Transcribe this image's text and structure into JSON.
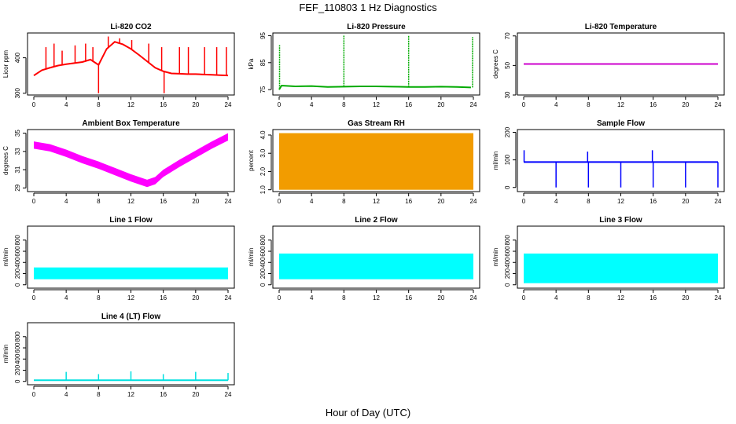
{
  "figure": {
    "title": "FEF_110803  1 Hz Diagnostics",
    "xlabel": "Hour of Day (UTC)"
  },
  "chart_data": [
    {
      "id": "co2",
      "type": "line",
      "title": "Li-820 CO2",
      "ylabel": "Licor ppm",
      "yticks": [
        300,
        400
      ],
      "ylim": [
        295,
        470
      ],
      "xlim": [
        0,
        24
      ],
      "xticks": [
        0,
        4,
        8,
        12,
        16,
        20,
        24
      ],
      "color": "#ff0000",
      "series": [
        {
          "x": [
            0,
            1,
            2,
            3,
            4,
            5,
            6,
            7,
            8,
            9,
            10,
            11,
            12,
            13,
            14,
            15,
            16,
            17,
            18,
            19,
            20,
            21,
            22,
            23,
            24
          ],
          "y": [
            350,
            365,
            372,
            378,
            382,
            385,
            388,
            395,
            380,
            425,
            445,
            438,
            425,
            408,
            390,
            372,
            362,
            356,
            355,
            354,
            354,
            353,
            352,
            351,
            350
          ]
        }
      ],
      "spikes": [
        [
          1.5,
          430
        ],
        [
          2.5,
          440
        ],
        [
          3.5,
          420
        ],
        [
          5.1,
          435
        ],
        [
          6.4,
          440
        ],
        [
          7.3,
          430
        ],
        [
          8,
          300
        ],
        [
          9.2,
          460
        ],
        [
          10.6,
          455
        ],
        [
          12.1,
          450
        ],
        [
          14.2,
          440
        ],
        [
          15.8,
          430
        ],
        [
          16.1,
          300
        ],
        [
          18,
          430
        ],
        [
          19.1,
          430
        ],
        [
          21.1,
          430
        ],
        [
          22.6,
          430
        ],
        [
          23.8,
          430
        ]
      ]
    },
    {
      "id": "pressure",
      "type": "line",
      "title": "Li-820 Pressure",
      "ylabel": "kPa",
      "yticks": [
        75,
        85,
        95
      ],
      "ylim": [
        73,
        96
      ],
      "xlim": [
        0,
        24
      ],
      "xticks": [
        0,
        4,
        8,
        12,
        16,
        20,
        24
      ],
      "color": "#00aa00",
      "series": [
        {
          "x": [
            0,
            0.3,
            2,
            4,
            6,
            8,
            10,
            12,
            14,
            16,
            18,
            20,
            22,
            23.7
          ],
          "y": [
            75,
            76.5,
            76.2,
            76.3,
            76,
            76.1,
            76.2,
            76.2,
            76.1,
            76,
            76,
            76.1,
            76,
            75.8
          ]
        }
      ],
      "spikes": [
        [
          0.05,
          91.5
        ],
        [
          8,
          95
        ],
        [
          16,
          95
        ],
        [
          23.9,
          94.5
        ]
      ]
    },
    {
      "id": "temp",
      "type": "line",
      "title": "Li-820 Temperature",
      "ylabel": "degrees C",
      "yticks": [
        30,
        50,
        70
      ],
      "ylim": [
        30,
        72
      ],
      "xlim": [
        0,
        24
      ],
      "xticks": [
        0,
        4,
        8,
        12,
        16,
        20,
        24
      ],
      "color": "#cc00cc",
      "series": [
        {
          "x": [
            0,
            24
          ],
          "y": [
            51,
            51
          ]
        }
      ]
    },
    {
      "id": "boxtemp",
      "type": "band",
      "title": "Ambient Box Temperature",
      "ylabel": "degrees C",
      "yticks": [
        29,
        31,
        33,
        35
      ],
      "ylim": [
        28.6,
        35.4
      ],
      "xlim": [
        0,
        24
      ],
      "xticks": [
        0,
        4,
        8,
        12,
        16,
        20,
        24
      ],
      "color": "#ff00ff",
      "series": [
        {
          "x": [
            0,
            2,
            4,
            6,
            8,
            10,
            12,
            14,
            15,
            16,
            18,
            20,
            22,
            24
          ],
          "y": [
            33.7,
            33.4,
            32.8,
            32.1,
            31.5,
            30.8,
            30.1,
            29.5,
            29.8,
            30.6,
            31.7,
            32.7,
            33.7,
            34.6
          ]
        }
      ],
      "halfwidth": 0.4
    },
    {
      "id": "rh",
      "type": "band",
      "title": "Gas Stream RH",
      "ylabel": "percent",
      "yticks": [
        1.0,
        2.0,
        3.0,
        4.0
      ],
      "ylim": [
        0.9,
        4.3
      ],
      "xlim": [
        0,
        24
      ],
      "xticks": [
        0,
        4,
        8,
        12,
        16,
        20,
        24
      ],
      "color": "#ff8c00",
      "color2": "#cccc00",
      "band": {
        "x": [
          0,
          24
        ],
        "low": [
          1.0,
          1.0
        ],
        "high": [
          4.1,
          4.1
        ]
      }
    },
    {
      "id": "sampleflow",
      "type": "line",
      "title": "Sample Flow",
      "ylabel": "ml/min",
      "yticks": [
        0,
        100,
        200
      ],
      "ylim": [
        -15,
        210
      ],
      "xlim": [
        0,
        24
      ],
      "xticks": [
        0,
        4,
        8,
        12,
        16,
        20,
        24
      ],
      "color": "#0000ff",
      "series": [
        {
          "x": [
            0,
            24
          ],
          "y": [
            92,
            92
          ]
        }
      ],
      "spikes": [
        [
          0.05,
          135
        ],
        [
          4,
          0
        ],
        [
          7.9,
          130
        ],
        [
          8,
          0
        ],
        [
          12,
          0
        ],
        [
          15.9,
          135
        ],
        [
          16,
          0
        ],
        [
          20,
          0
        ],
        [
          24,
          0
        ]
      ]
    },
    {
      "id": "line1",
      "type": "band",
      "title": "Line 1 Flow",
      "ylabel": "ml/min",
      "yticks": [
        0,
        200,
        400,
        600,
        800
      ],
      "ylim": [
        -60,
        1050
      ],
      "xlim": [
        0,
        24
      ],
      "xticks": [
        0,
        4,
        8,
        12,
        16,
        20,
        24
      ],
      "color": "#00ffff",
      "band": {
        "x": [
          0,
          24
        ],
        "low": [
          100,
          100
        ],
        "high": [
          310,
          310
        ]
      }
    },
    {
      "id": "line2",
      "type": "band",
      "title": "Line 2 Flow",
      "ylabel": "ml/min",
      "yticks": [
        0,
        200,
        400,
        600,
        800
      ],
      "ylim": [
        -60,
        1050
      ],
      "xlim": [
        0,
        24
      ],
      "xticks": [
        0,
        4,
        8,
        12,
        16,
        20,
        24
      ],
      "color": "#00ffff",
      "band": {
        "x": [
          0,
          24
        ],
        "low": [
          100,
          100
        ],
        "high": [
          560,
          560
        ]
      }
    },
    {
      "id": "line3",
      "type": "band",
      "title": "Line 3 Flow",
      "ylabel": "ml/min",
      "yticks": [
        0,
        200,
        400,
        600,
        800
      ],
      "ylim": [
        -60,
        1050
      ],
      "xlim": [
        0,
        24
      ],
      "xticks": [
        0,
        4,
        8,
        12,
        16,
        20,
        24
      ],
      "color": "#00ffff",
      "band": {
        "x": [
          0,
          24
        ],
        "low": [
          30,
          30
        ],
        "high": [
          560,
          560
        ]
      }
    },
    {
      "id": "line4",
      "type": "line",
      "title": "Line 4 (LT) Flow",
      "ylabel": "ml/min",
      "yticks": [
        0,
        200,
        400,
        600,
        800
      ],
      "ylim": [
        -60,
        1050
      ],
      "xlim": [
        0,
        24
      ],
      "xticks": [
        0,
        4,
        8,
        12,
        16,
        20,
        24
      ],
      "color": "#00e0e0",
      "series": [
        {
          "x": [
            0,
            24
          ],
          "y": [
            20,
            20
          ]
        }
      ],
      "spikes": [
        [
          4,
          170
        ],
        [
          8,
          130
        ],
        [
          12,
          180
        ],
        [
          16,
          130
        ],
        [
          20,
          170
        ],
        [
          24,
          150
        ]
      ]
    }
  ]
}
